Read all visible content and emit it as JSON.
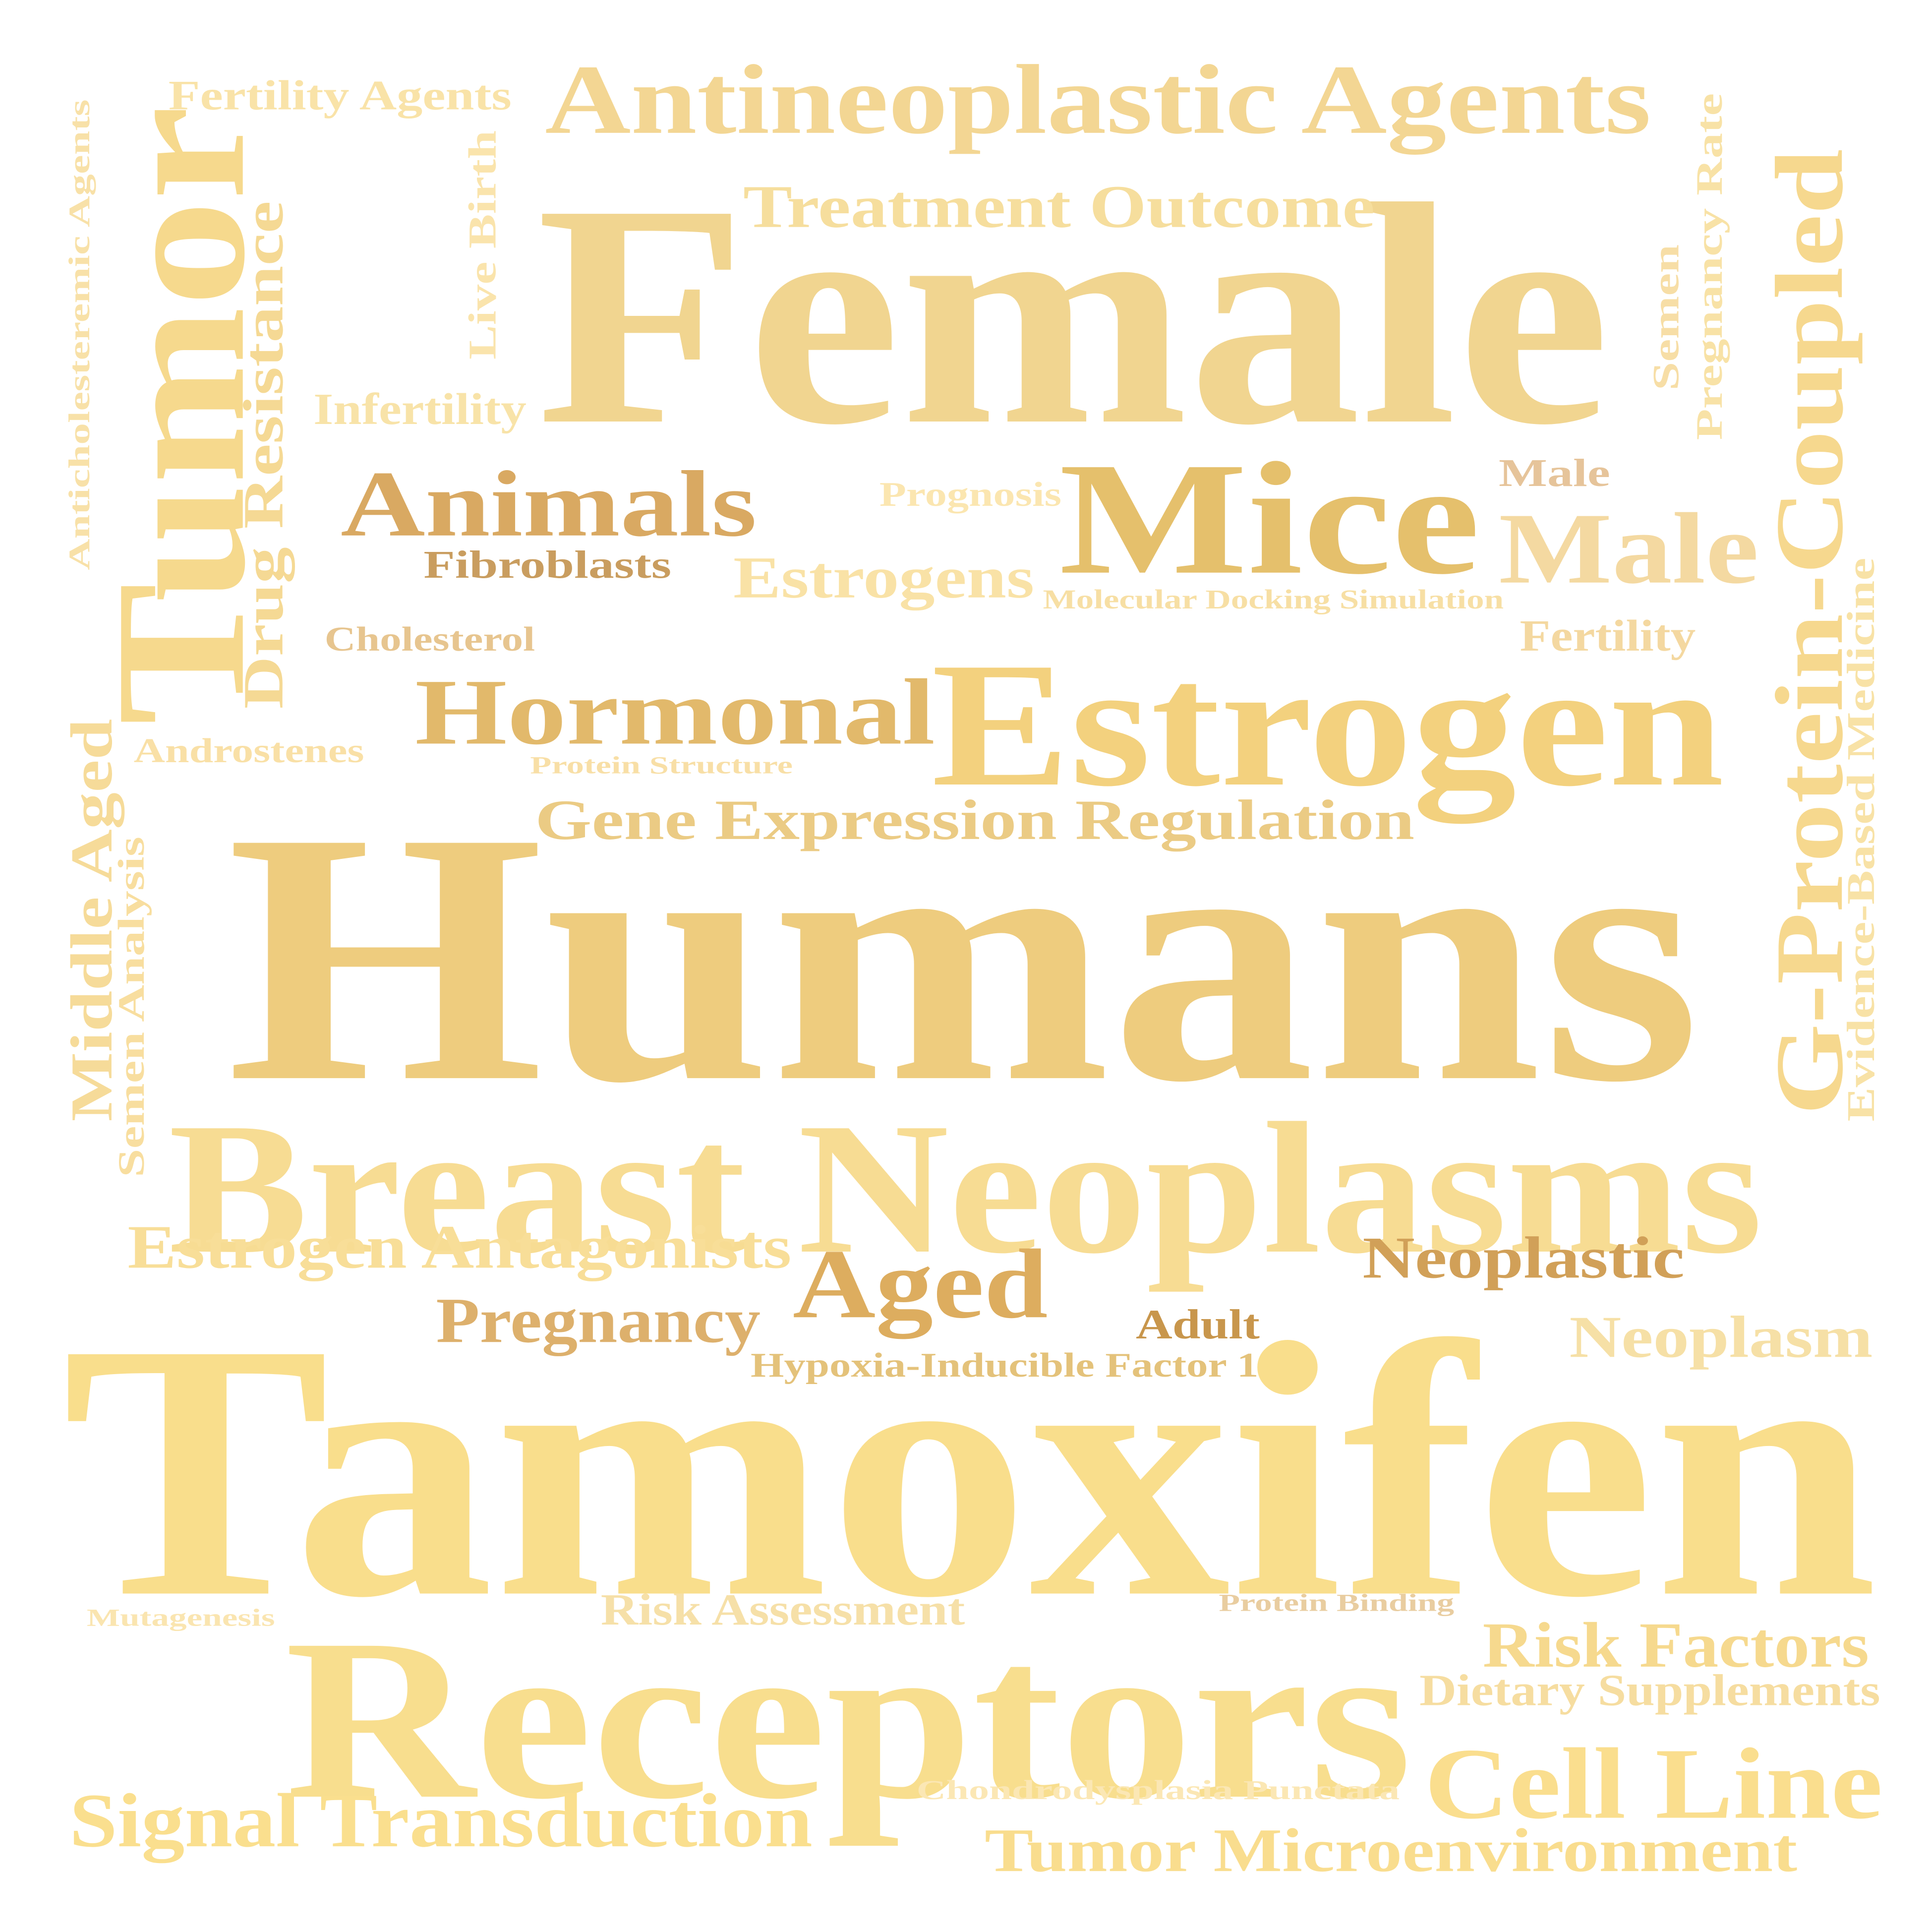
{
  "words": [
    {
      "id": "tamoxifen",
      "text": "Tamoxifen",
      "color": "#F9DE8C"
    },
    {
      "id": "humans",
      "text": "Humans",
      "color": "#EECC7E"
    },
    {
      "id": "female",
      "text": "Female",
      "color": "#F1D590"
    },
    {
      "id": "receptors",
      "text": "Receptors",
      "color": "#F8DE8E"
    },
    {
      "id": "breast-neoplasms",
      "text": "Breast Neoplasms",
      "color": "#F7DC93"
    },
    {
      "id": "estrogen",
      "text": "Estrogen",
      "color": "#F3D17E"
    },
    {
      "id": "mice",
      "text": "Mice",
      "color": "#E5C06C"
    },
    {
      "id": "antineoplastic-agents",
      "text": "Antineoplastic Agents",
      "color": "#F3D693"
    },
    {
      "id": "tumor",
      "text": "Tumor",
      "color": "#F6D98D"
    },
    {
      "id": "g-protein-coupled",
      "text": "G-Protein-Coupled",
      "color": "#F6D88E"
    },
    {
      "id": "hormonal",
      "text": "Hormonal",
      "color": "#E2B96B"
    },
    {
      "id": "animals",
      "text": "Animals",
      "color": "#D9A962"
    },
    {
      "id": "male-large",
      "text": "Male",
      "color": "#F4D9A1"
    },
    {
      "id": "aged",
      "text": "Aged",
      "color": "#DDAD5F"
    },
    {
      "id": "cell-line",
      "text": "Cell Line",
      "color": "#FADE8E"
    },
    {
      "id": "treatment-outcome",
      "text": "Treatment Outcome",
      "color": "#F6DE9D"
    },
    {
      "id": "gene-expression-regulation",
      "text": "Gene Expression Regulation",
      "color": "#EBCB84"
    },
    {
      "id": "signal-transduction",
      "text": "Signal Transduction",
      "color": "#FADF8E"
    },
    {
      "id": "drug-resistance",
      "text": "Drug Resistance",
      "color": "#F5D994"
    },
    {
      "id": "estrogens",
      "text": "Estrogens",
      "color": "#F9E2A6"
    },
    {
      "id": "estrogen-antagonists",
      "text": "Estrogen Antagonists",
      "color": "#F8DE98"
    },
    {
      "id": "tumor-microenvironment",
      "text": "Tumor Microenvironment",
      "color": "#F9DD8E"
    },
    {
      "id": "middle-aged",
      "text": "Middle Aged",
      "color": "#F6DB99"
    },
    {
      "id": "risk-factors",
      "text": "Risk Factors",
      "color": "#F6D98E"
    },
    {
      "id": "pregnancy",
      "text": "Pregnancy",
      "color": "#DDB06C"
    },
    {
      "id": "neoplastic",
      "text": "Neoplastic",
      "color": "#D1A058"
    },
    {
      "id": "neoplasm",
      "text": "Neoplasm",
      "color": "#F6E0A6"
    },
    {
      "id": "evidence-based-medicine",
      "text": "Evidence-Based Medicine",
      "color": "#F8E2A6"
    },
    {
      "id": "infertility",
      "text": "Infertility",
      "color": "#F8E3A8"
    },
    {
      "id": "fertility-agents",
      "text": "Fertility Agents",
      "color": "#F9E3A8"
    },
    {
      "id": "risk-assessment",
      "text": "Risk Assessment",
      "color": "#F6E0A8"
    },
    {
      "id": "dietary-supplements",
      "text": "Dietary Supplements",
      "color": "#F6DDA0"
    },
    {
      "id": "semen-analysis",
      "text": "Semen Analysis",
      "color": "#F8DE9F"
    },
    {
      "id": "pregnancy-rate",
      "text": "Pregnancy Rate",
      "color": "#F8E2A6"
    },
    {
      "id": "live-birth",
      "text": "Live Birth",
      "color": "#FAE4AC"
    },
    {
      "id": "fertility",
      "text": "Fertility",
      "color": "#F4D8A0"
    },
    {
      "id": "androstenes",
      "text": "Androstenes",
      "color": "#F9E0A6"
    },
    {
      "id": "cholesterol",
      "text": "Cholesterol",
      "color": "#E7C58F"
    },
    {
      "id": "fibroblasts",
      "text": "Fibroblasts",
      "color": "#C99D5F"
    },
    {
      "id": "adult",
      "text": "Adult",
      "color": "#C8964C"
    },
    {
      "id": "hypoxia-inducible-factor-1",
      "text": "Hypoxia-Inducible Factor 1",
      "color": "#E4C27A"
    },
    {
      "id": "anticholesteremic-agents",
      "text": "Anticholesteremic Agents",
      "color": "#F8E1A8"
    },
    {
      "id": "prognosis",
      "text": "Prognosis",
      "color": "#FBE6B0"
    },
    {
      "id": "male-small",
      "text": "Male",
      "color": "#E6C49A"
    },
    {
      "id": "semen",
      "text": "Semen",
      "color": "#F7DEA6"
    },
    {
      "id": "molecular-docking-simulation",
      "text": "Molecular Docking Simulation",
      "color": "#F7DFA4"
    },
    {
      "id": "protein-structure",
      "text": "Protein Structure",
      "color": "#F8DFA6"
    },
    {
      "id": "chondrodysplasia-punctata",
      "text": "Chondrodysplasia Punctata",
      "color": "#FBE7B4"
    },
    {
      "id": "mutagenesis",
      "text": "Mutagenesis",
      "color": "#FAE5B0"
    },
    {
      "id": "protein-binding",
      "text": "Protein Binding",
      "color": "#E9CDA0"
    }
  ]
}
